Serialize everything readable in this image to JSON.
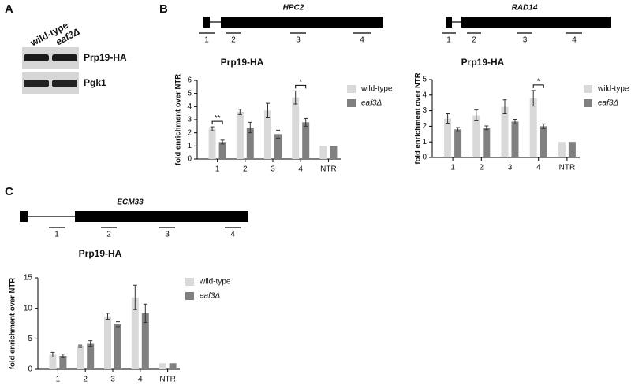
{
  "panels": [
    "A",
    "B",
    "C"
  ],
  "blot": {
    "columns": [
      "wild-type",
      "eaf3Δ"
    ],
    "rows": [
      "Prp19-HA",
      "Pgk1"
    ]
  },
  "gene_maps": [
    {
      "name": "HPC2",
      "amplicons": [
        "1",
        "2",
        "3",
        "4"
      ]
    },
    {
      "name": "RAD14",
      "amplicons": [
        "1",
        "2",
        "3",
        "4"
      ]
    },
    {
      "name": "ECM33",
      "amplicons": [
        "1",
        "2",
        "3",
        "4"
      ]
    }
  ],
  "chart_data": [
    {
      "type": "bar",
      "title": "Prp19-HA",
      "y_label": "fold enrichment over NTR",
      "categories": [
        "1",
        "2",
        "3",
        "4",
        "NTR"
      ],
      "series": [
        {
          "name": "wild-type",
          "color": "#d9d9d9",
          "values": [
            2.3,
            3.6,
            3.7,
            4.7,
            1.0
          ],
          "errors": [
            0.15,
            0.2,
            0.55,
            0.5,
            0
          ]
        },
        {
          "name": "eaf3Δ",
          "color": "#808080",
          "values": [
            1.3,
            2.4,
            1.9,
            2.8,
            1.0
          ],
          "errors": [
            0.15,
            0.4,
            0.3,
            0.3,
            0
          ]
        }
      ],
      "ylim": [
        0,
        6
      ],
      "yticks": [
        0,
        1,
        2,
        3,
        4,
        5,
        6
      ],
      "annotations": [
        {
          "text": "**",
          "category": "1"
        },
        {
          "text": "*",
          "category": "4"
        }
      ]
    },
    {
      "type": "bar",
      "title": "Prp19-HA",
      "y_label": "fold enrichment over NTR",
      "categories": [
        "1",
        "2",
        "3",
        "4",
        "NTR"
      ],
      "series": [
        {
          "name": "wild-type",
          "color": "#d9d9d9",
          "values": [
            2.5,
            2.7,
            3.25,
            3.8,
            1.0
          ],
          "errors": [
            0.3,
            0.35,
            0.45,
            0.5,
            0
          ]
        },
        {
          "name": "eaf3Δ",
          "color": "#808080",
          "values": [
            1.8,
            1.9,
            2.3,
            2.0,
            1.0
          ],
          "errors": [
            0.12,
            0.12,
            0.15,
            0.15,
            0
          ]
        }
      ],
      "ylim": [
        0,
        5
      ],
      "yticks": [
        0,
        1,
        2,
        3,
        4,
        5
      ],
      "annotations": [
        {
          "text": "*",
          "category": "4"
        }
      ]
    },
    {
      "type": "bar",
      "title": "Prp19-HA",
      "y_label": "fold enrichment over NTR",
      "categories": [
        "1",
        "2",
        "3",
        "4",
        "NTR"
      ],
      "series": [
        {
          "name": "wild-type",
          "color": "#d9d9d9",
          "values": [
            2.4,
            3.8,
            8.7,
            11.8,
            1.0
          ],
          "errors": [
            0.4,
            0.2,
            0.5,
            2.0,
            0
          ]
        },
        {
          "name": "eaf3Δ",
          "color": "#808080",
          "values": [
            2.2,
            4.2,
            7.4,
            9.2,
            1.0
          ],
          "errors": [
            0.3,
            0.5,
            0.4,
            1.5,
            0
          ]
        }
      ],
      "ylim": [
        0,
        15
      ],
      "yticks": [
        0,
        5,
        10,
        15
      ],
      "annotations": []
    }
  ]
}
